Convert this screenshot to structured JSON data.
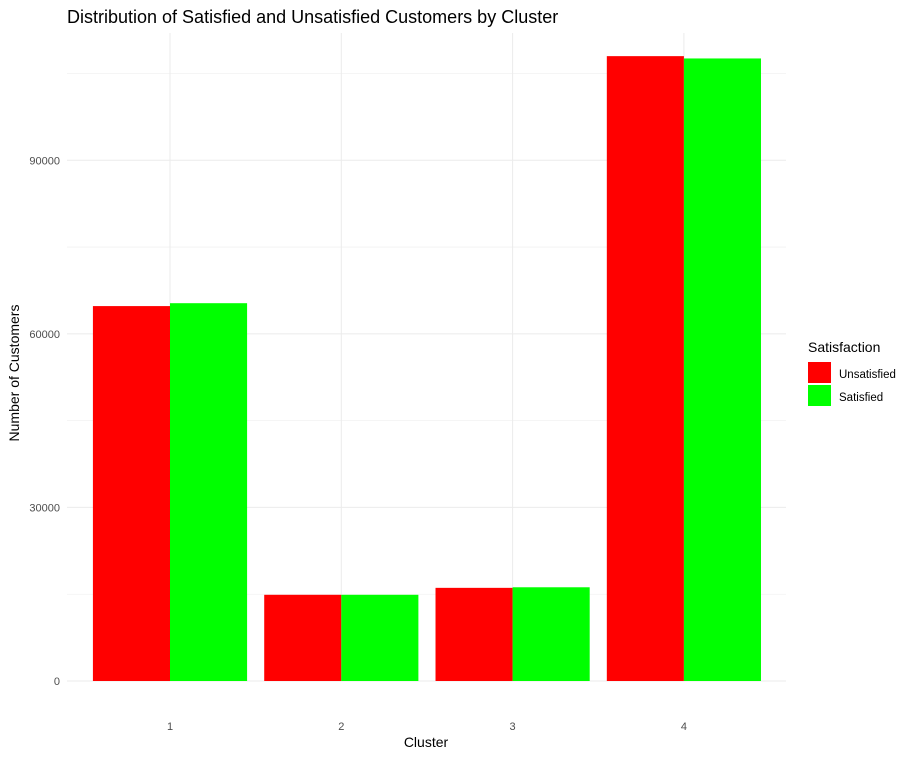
{
  "chart_data": {
    "type": "bar",
    "title": "Distribution of Satisfied and Unsatisfied Customers by Cluster",
    "xlabel": "Cluster",
    "ylabel": "Number of Customers",
    "categories": [
      "1",
      "2",
      "3",
      "4"
    ],
    "series": [
      {
        "name": "Unsatisfied",
        "color": "#ff0000",
        "values": [
          64800,
          14900,
          16100,
          108000
        ]
      },
      {
        "name": "Satisfied",
        "color": "#00ff00",
        "values": [
          65300,
          14900,
          16200,
          107600
        ]
      }
    ],
    "ylim": [
      0,
      112000
    ],
    "yticks": [
      0,
      30000,
      60000,
      90000
    ],
    "ytick_labels": [
      "0",
      "30000",
      "60000",
      "90000"
    ],
    "grid": true,
    "legend": {
      "title": "Satisfaction",
      "placement": "right"
    }
  }
}
